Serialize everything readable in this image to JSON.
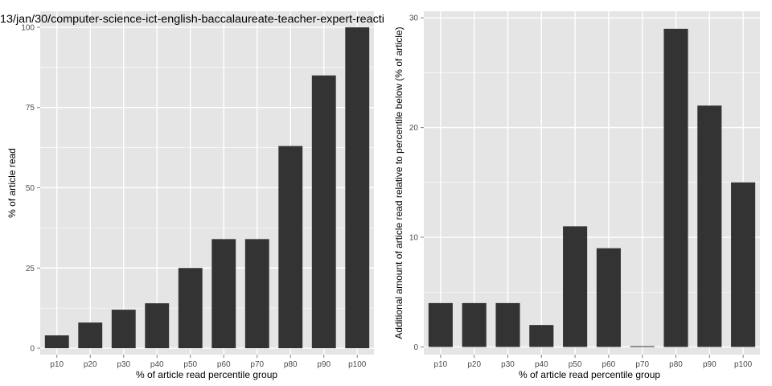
{
  "chart_data": [
    {
      "type": "bar",
      "title": "13/jan/30/computer-science-ict-english-baccalaureate-teacher-expert-reacti",
      "categories": [
        "p10",
        "p20",
        "p30",
        "p40",
        "p50",
        "p60",
        "p70",
        "p80",
        "p90",
        "p100"
      ],
      "values": [
        4,
        8,
        12,
        14,
        25,
        34,
        34,
        63,
        85,
        100
      ],
      "xlabel": "% of article read percentile group",
      "ylabel": "% of article read",
      "ylim": [
        -2,
        105
      ],
      "yticks": [
        0,
        25,
        50,
        75,
        100
      ],
      "grid": true,
      "bar_color": "#333333",
      "panel_color": "#e5e5e5",
      "grid_color": "#ffffff"
    },
    {
      "type": "bar",
      "title": "",
      "categories": [
        "p10",
        "p20",
        "p30",
        "p40",
        "p50",
        "p60",
        "p70",
        "p80",
        "p90",
        "p100"
      ],
      "values": [
        4,
        4,
        4,
        2,
        11,
        9,
        0,
        29,
        22,
        15
      ],
      "xlabel": "% of article read percentile group",
      "ylabel": "Additional amount of article read relative to percentile below (% of article)",
      "ylim": [
        -0.7,
        30.6
      ],
      "yticks": [
        0,
        10,
        20,
        30
      ],
      "grid": true,
      "bar_color": "#333333",
      "panel_color": "#e5e5e5",
      "grid_color": "#ffffff"
    }
  ]
}
